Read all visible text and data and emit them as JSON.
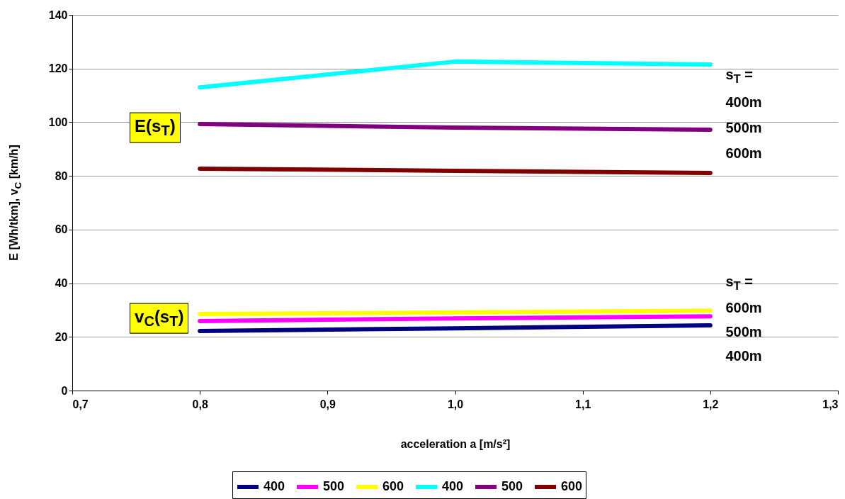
{
  "chart_data": {
    "type": "line",
    "xlabel": "acceleration a [m/s²]",
    "ylabel": "E [Wh/tkm], v$_{C}$ [km/h]",
    "x": [
      0.8,
      1.0,
      1.2
    ],
    "series": [
      {
        "name": "400",
        "color": "#000080",
        "values": [
          22.2,
          23.2,
          24.3
        ]
      },
      {
        "name": "500",
        "color": "#ff00ff",
        "values": [
          25.9,
          26.9,
          27.7
        ]
      },
      {
        "name": "600",
        "color": "#ffff00",
        "values": [
          28.5,
          29.1,
          29.8
        ]
      },
      {
        "name": "400",
        "color": "#00ffff",
        "values": [
          113.0,
          122.6,
          121.5
        ]
      },
      {
        "name": "500",
        "color": "#800080",
        "values": [
          99.3,
          98.0,
          97.2
        ]
      },
      {
        "name": "600",
        "color": "#800000",
        "values": [
          82.7,
          81.9,
          81.1
        ]
      }
    ],
    "xlim": [
      0.7,
      1.3
    ],
    "xticks": [
      {
        "value": 0.7,
        "label": "0,7"
      },
      {
        "value": 0.8,
        "label": "0,8"
      },
      {
        "value": 0.9,
        "label": "0,9"
      },
      {
        "value": 1.0,
        "label": "1,0"
      },
      {
        "value": 1.1,
        "label": "1,1"
      },
      {
        "value": 1.2,
        "label": "1,2"
      },
      {
        "value": 1.3,
        "label": "1,3"
      }
    ],
    "ylim": [
      0,
      140
    ],
    "yticks": [
      0,
      20,
      40,
      60,
      80,
      100,
      120,
      140
    ],
    "grid": "y",
    "legend": "bottom",
    "line_style": "solid",
    "annotations": [
      "E(s$_{T}$)",
      "v$_{C}$(s$_{T}$)",
      "s$_{T}$ =",
      "400m",
      "500m",
      "600m",
      "s$_{T}$ =",
      "600m",
      "500m",
      "400m"
    ]
  }
}
